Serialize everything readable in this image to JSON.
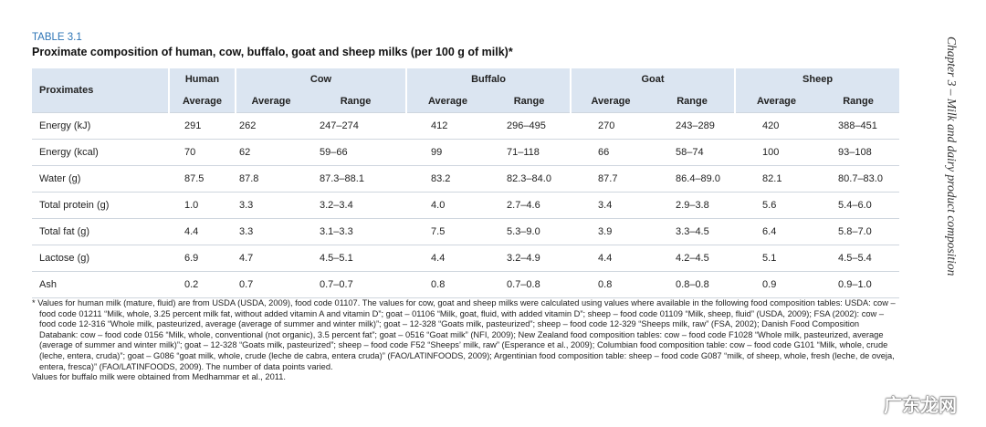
{
  "table_label": "TABLE 3.1",
  "title": "Proximate composition of human, cow, buffalo, goat and sheep milks (per 100 g of milk)*",
  "table": {
    "row_header": "Proximates",
    "groups": [
      {
        "name": "Human",
        "columns": [
          "Average"
        ]
      },
      {
        "name": "Cow",
        "columns": [
          "Average",
          "Range"
        ]
      },
      {
        "name": "Buffalo",
        "columns": [
          "Average",
          "Range"
        ]
      },
      {
        "name": "Goat",
        "columns": [
          "Average",
          "Range"
        ]
      },
      {
        "name": "Sheep",
        "columns": [
          "Average",
          "Range"
        ]
      }
    ],
    "rows": [
      [
        "Energy (kJ)",
        "291",
        "262",
        "247–274",
        "412",
        "296–495",
        "270",
        "243–289",
        "420",
        "388–451"
      ],
      [
        "Energy (kcal)",
        "70",
        "62",
        "59–66",
        "99",
        "71–118",
        "66",
        "58–74",
        "100",
        "93–108"
      ],
      [
        "Water (g)",
        "87.5",
        "87.8",
        "87.3–88.1",
        "83.2",
        "82.3–84.0",
        "87.7",
        "86.4–89.0",
        "82.1",
        "80.7–83.0"
      ],
      [
        "Total protein (g)",
        "1.0",
        "3.3",
        "3.2–3.4",
        "4.0",
        "2.7–4.6",
        "3.4",
        "2.9–3.8",
        "5.6",
        "5.4–6.0"
      ],
      [
        "Total fat (g)",
        "4.4",
        "3.3",
        "3.1–3.3",
        "7.5",
        "5.3–9.0",
        "3.9",
        "3.3–4.5",
        "6.4",
        "5.8–7.0"
      ],
      [
        "Lactose (g)",
        "6.9",
        "4.7",
        "4.5–5.1",
        "4.4",
        "3.2–4.9",
        "4.4",
        "4.2–4.5",
        "5.1",
        "4.5–5.4"
      ],
      [
        "Ash",
        "0.2",
        "0.7",
        "0.7–0.7",
        "0.8",
        "0.7–0.8",
        "0.8",
        "0.8–0.8",
        "0.9",
        "0.9–1.0"
      ]
    ]
  },
  "footnote": [
    "* Values for human milk (mature, fluid) are from USDA (USDA, 2009), food code 01107. The values for cow, goat and sheep milks were calculated using values where available in the following food composition tables: USDA: cow – food code 01211 “Milk, whole, 3.25 percent milk fat, without added vitamin A and vitamin D”; goat – 01106 “Milk, goat, fluid, with added vitamin D”; sheep – food code 01109 “Milk, sheep, fluid” (USDA, 2009); FSA (2002): cow – food code 12-316 “Whole milk, pasteurized, average (average of summer and winter milk)”; goat – 12-328 “Goats milk, pasteurized”; sheep – food code 12-329 “Sheeps milk, raw” (FSA, 2002); Danish Food Composition Databank: cow – food code 0156 “Milk, whole, conventional (not organic), 3.5 percent fat”; goat – 0516 “Goat milk” (NFI, 2009); New Zealand food composition tables: cow – food code F1028 “Whole milk, pasteurized, average (average of summer and winter milk)”; goat – 12-328 “Goats milk, pasteurized”; sheep – food code F52 “Sheeps’ milk, raw” (Esperance et al., 2009); Columbian food composition table: cow – food code G101 “Milk, whole, crude (leche, entera, cruda)”; goat – G086 “goat milk, whole, crude (leche de cabra, entera cruda)” (FAO/LATINFOODS, 2009); Argentinian food composition table: sheep – food code G087 “milk, of sheep, whole, fresh (leche, de oveja, entera, fresca)” (FAO/LATINFOODS, 2009). The number of data points varied.",
    "Values for buffalo milk were obtained from Medhammar et al., 2011."
  ],
  "side_text": "Chapter 3 – Milk and dairy product composition",
  "watermark": "广东龙网"
}
